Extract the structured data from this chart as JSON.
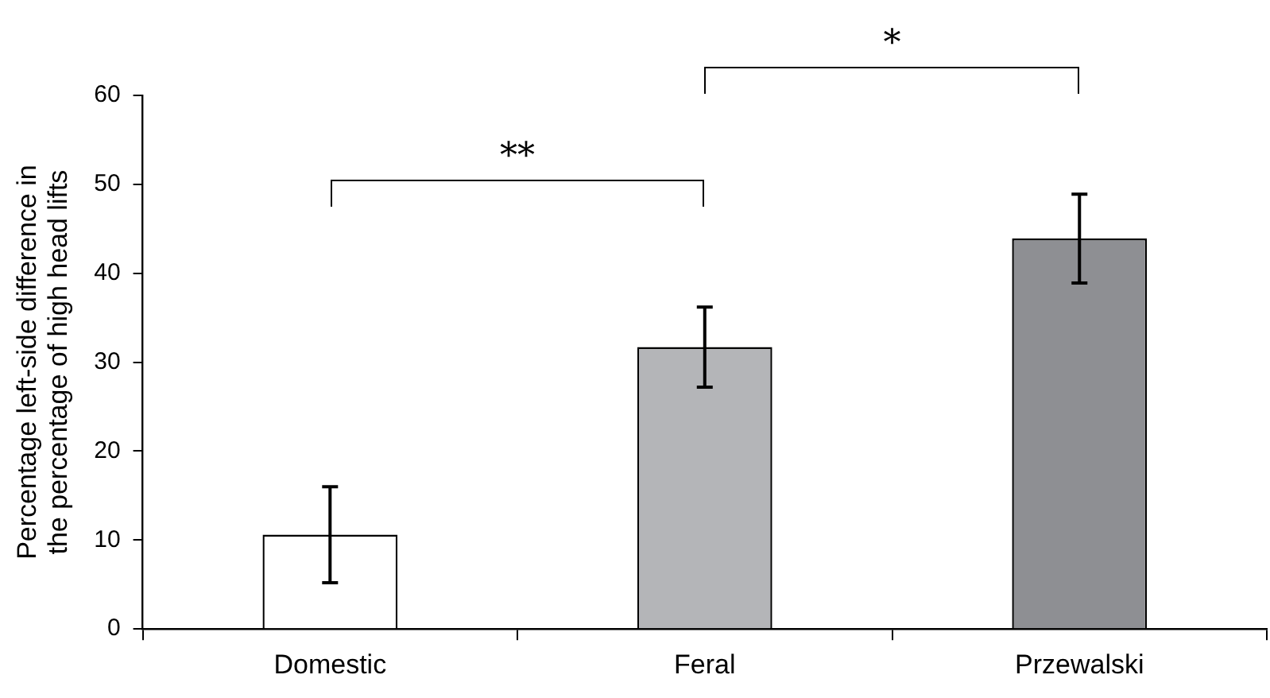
{
  "chart_data": {
    "type": "bar",
    "ylabel": "Percentage left-side difference in the percentage of high head lifts",
    "categories": [
      "Domestic",
      "Feral",
      "Przewalski"
    ],
    "values": [
      10.6,
      31.7,
      43.9
    ],
    "colors": [
      "#ffffff",
      "#b4b5b8",
      "#8e8f93"
    ],
    "errors": [
      5.4,
      4.5,
      5
    ],
    "ylim": [
      0,
      60
    ],
    "yticks": [
      0,
      10,
      20,
      30,
      40,
      50,
      60
    ],
    "grid": false,
    "legend": false,
    "annotations": [
      "**",
      "*"
    ]
  }
}
